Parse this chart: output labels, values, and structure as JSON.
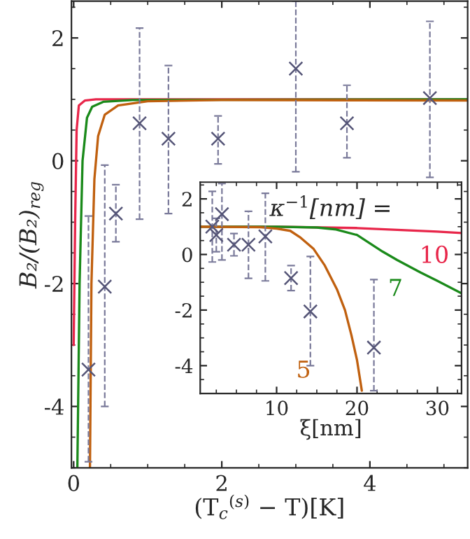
{
  "chart_data": [
    {
      "type": "line",
      "xlabel": "(T$_{c}$$^{(s)}$ − T)[K]",
      "ylabel": "B₂/(B₂)$_{reg}$",
      "xlim": [
        -0.03,
        5.32
      ],
      "ylim": [
        -5,
        2.6
      ],
      "xticks": [
        0,
        2,
        4
      ],
      "yticks": [
        -4,
        -2,
        0,
        2
      ],
      "grid": false,
      "legend": false,
      "series": [
        {
          "color": "#e8264a",
          "x": [
            0.0,
            0.02,
            0.04,
            0.07,
            0.15,
            0.3,
            5.32
          ],
          "values": [
            -3.0,
            -1.0,
            0.5,
            0.9,
            0.98,
            1.0,
            1.0
          ]
        },
        {
          "color": "#1a8a1a",
          "x": [
            0.05,
            0.08,
            0.12,
            0.18,
            0.25,
            0.4,
            0.8,
            5.32
          ],
          "values": [
            -5,
            -2,
            0,
            0.7,
            0.88,
            0.96,
            0.99,
            1.0
          ]
        },
        {
          "color": "#c0600f",
          "x": [
            0.22,
            0.24,
            0.28,
            0.33,
            0.42,
            0.6,
            1,
            2,
            5.32
          ],
          "values": [
            -5,
            -2,
            -0.3,
            0.4,
            0.75,
            0.9,
            0.97,
            0.99,
            0.98
          ]
        },
        {
          "type": "scatter",
          "color": "#555577",
          "marker": "cross",
          "x": [
            0.2,
            0.42,
            0.57,
            0.89,
            1.28,
            1.95,
            3.0,
            3.69,
            4.81
          ],
          "values": [
            -3.4,
            -2.05,
            -0.86,
            0.61,
            0.36,
            0.36,
            1.5,
            0.61,
            1.02
          ],
          "errors": [
            [
              -4.9,
              -0.9
            ],
            [
              -4.0,
              -0.07
            ],
            [
              -1.32,
              -0.39
            ],
            [
              -0.95,
              2.16
            ],
            [
              -0.86,
              1.55
            ],
            [
              -0.05,
              0.73
            ],
            [
              -0.18,
              2.6
            ],
            [
              0.05,
              1.23
            ],
            [
              -0.27,
              2.27
            ]
          ]
        }
      ]
    },
    {
      "type": "line",
      "xlabel": "ξ[nm]",
      "xlim": [
        0.5,
        33
      ],
      "ylim": [
        -5,
        2.6
      ],
      "xticks": [
        10,
        20,
        30
      ],
      "yticks": [
        -4,
        -2,
        0,
        2
      ],
      "grid": false,
      "legend": false,
      "annotations": [
        "κ$^{−1}$[nm] ="
      ],
      "series": [
        {
          "name": "10",
          "color": "#e8264a",
          "x": [
            0.5,
            10,
            20,
            30,
            33
          ],
          "values": [
            1,
            1,
            0.95,
            0.82,
            0.77
          ]
        },
        {
          "name": "7",
          "color": "#1a8a1a",
          "x": [
            0.5,
            10,
            15,
            17.4,
            20,
            23.2,
            25,
            27.9,
            30,
            33
          ],
          "values": [
            1,
            1,
            0.97,
            0.9,
            0.7,
            0.1,
            -0.2,
            -0.65,
            -0.95,
            -1.4
          ]
        },
        {
          "name": "5",
          "color": "#c0600f",
          "x": [
            0.5,
            8,
            10,
            11.7,
            13,
            14.6,
            16,
            17.5,
            18.5,
            19.3,
            20,
            20.6
          ],
          "values": [
            1,
            0.98,
            0.93,
            0.85,
            0.6,
            0.2,
            -0.4,
            -1.25,
            -2,
            -2.9,
            -3.8,
            -4.9
          ]
        },
        {
          "type": "scatter",
          "color": "#555577",
          "marker": "cross",
          "x": [
            2,
            2.5,
            3.2,
            4.7,
            6.5,
            8.6,
            11.8,
            14.2,
            22.1
          ],
          "values": [
            1.0,
            0.7,
            1.45,
            0.35,
            0.35,
            0.65,
            -0.85,
            -2.05,
            -3.35
          ],
          "errors": [
            [
              -0.27,
              2.27
            ],
            [
              0.1,
              1.3
            ],
            [
              -0.2,
              2.55
            ],
            [
              -0.05,
              0.75
            ],
            [
              -0.86,
              1.55
            ],
            [
              -0.95,
              2.2
            ],
            [
              -1.3,
              -0.4
            ],
            [
              -4,
              -0.07
            ],
            [
              -4.9,
              -0.9
            ]
          ]
        }
      ]
    }
  ]
}
